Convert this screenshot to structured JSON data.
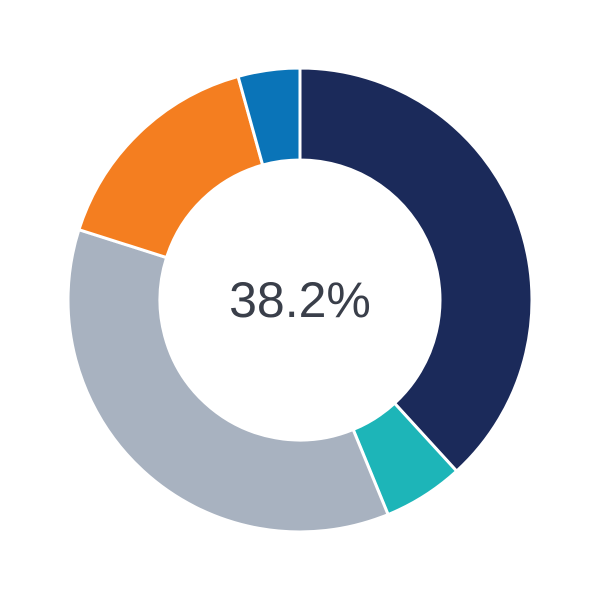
{
  "chart_data": {
    "type": "donut",
    "center_label": "38.2%",
    "values": [
      38.2,
      5.6,
      36.1,
      15.8,
      4.3
    ],
    "colors": [
      "#1b2a5a",
      "#1db5b8",
      "#a8b2c0",
      "#f47e20",
      "#0a74b8"
    ]
  }
}
